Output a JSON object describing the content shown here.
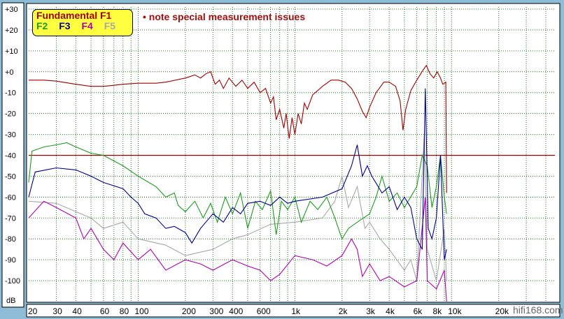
{
  "chart_data": {
    "type": "line",
    "x_scale": "log",
    "xlim": [
      20,
      45700
    ],
    "ylim": [
      -110,
      31
    ],
    "ylabel": "dB",
    "grid": true,
    "legend_placement": "top-left",
    "y_ticks": [
      {
        "v": 30,
        "label": "+30"
      },
      {
        "v": 20,
        "label": "+20"
      },
      {
        "v": 10,
        "label": "+10"
      },
      {
        "v": 0,
        "label": "+0"
      },
      {
        "v": -10,
        "label": "-10"
      },
      {
        "v": -20,
        "label": "-20"
      },
      {
        "v": -30,
        "label": "-30"
      },
      {
        "v": -40,
        "label": "-40"
      },
      {
        "v": -50,
        "label": "-50"
      },
      {
        "v": -60,
        "label": "-60"
      },
      {
        "v": -70,
        "label": "-70"
      },
      {
        "v": -80,
        "label": "-80"
      },
      {
        "v": -90,
        "label": "-90"
      },
      {
        "v": -100,
        "label": "-100"
      }
    ],
    "x_ticks": [
      {
        "v": 20,
        "label": "20"
      },
      {
        "v": 30,
        "label": "30"
      },
      {
        "v": 40,
        "label": "40"
      },
      {
        "v": 60,
        "label": "60"
      },
      {
        "v": 80,
        "label": "80"
      },
      {
        "v": 100,
        "label": "100"
      },
      {
        "v": 200,
        "label": "200"
      },
      {
        "v": 300,
        "label": "300"
      },
      {
        "v": 400,
        "label": "400"
      },
      {
        "v": 600,
        "label": "600"
      },
      {
        "v": 1000,
        "label": "1k"
      },
      {
        "v": 2000,
        "label": "2k"
      },
      {
        "v": 3000,
        "label": "3k"
      },
      {
        "v": 4000,
        "label": "4k"
      },
      {
        "v": 6000,
        "label": "6k"
      },
      {
        "v": 8000,
        "label": "8k"
      },
      {
        "v": 10000,
        "label": "10k"
      },
      {
        "v": 20000,
        "label": "20k"
      }
    ],
    "x_gridlines": [
      30,
      40,
      50,
      60,
      70,
      80,
      90,
      100,
      200,
      300,
      400,
      500,
      600,
      700,
      800,
      900,
      1000,
      2000,
      3000,
      4000,
      5000,
      6000,
      7000,
      8000,
      9000,
      10000,
      20000,
      30000,
      40000
    ],
    "reference_line": {
      "y": -40,
      "color": "#a00000"
    },
    "series": [
      {
        "name": "Fundamental F1",
        "color": "#a00000",
        "points": [
          [
            20,
            -4
          ],
          [
            25,
            -4
          ],
          [
            30,
            -4.5
          ],
          [
            40,
            -6
          ],
          [
            50,
            -7
          ],
          [
            60,
            -7
          ],
          [
            70,
            -6.5
          ],
          [
            80,
            -6
          ],
          [
            100,
            -5.5
          ],
          [
            130,
            -5.5
          ],
          [
            150,
            -5
          ],
          [
            200,
            -3
          ],
          [
            230,
            -1.5
          ],
          [
            250,
            -3
          ],
          [
            270,
            -1
          ],
          [
            290,
            0
          ],
          [
            310,
            -6
          ],
          [
            330,
            -4
          ],
          [
            350,
            -8
          ],
          [
            380,
            -3
          ],
          [
            420,
            -7
          ],
          [
            460,
            -4
          ],
          [
            500,
            -8
          ],
          [
            550,
            -5
          ],
          [
            600,
            -10
          ],
          [
            650,
            -8
          ],
          [
            700,
            -15
          ],
          [
            730,
            -12
          ],
          [
            760,
            -23
          ],
          [
            800,
            -18
          ],
          [
            850,
            -27
          ],
          [
            880,
            -20
          ],
          [
            920,
            -32
          ],
          [
            960,
            -22
          ],
          [
            1000,
            -30
          ],
          [
            1050,
            -20
          ],
          [
            1100,
            -25
          ],
          [
            1150,
            -15
          ],
          [
            1200,
            -18
          ],
          [
            1300,
            -11
          ],
          [
            1400,
            -9
          ],
          [
            1500,
            -7
          ],
          [
            1700,
            -4
          ],
          [
            1900,
            -4
          ],
          [
            2100,
            -5
          ],
          [
            2300,
            -8
          ],
          [
            2500,
            -13
          ],
          [
            2700,
            -19
          ],
          [
            2850,
            -22
          ],
          [
            3000,
            -17
          ],
          [
            3300,
            -10
          ],
          [
            3700,
            -5
          ],
          [
            4000,
            -5
          ],
          [
            4400,
            -7
          ],
          [
            4700,
            -14
          ],
          [
            4900,
            -28
          ],
          [
            5100,
            -18
          ],
          [
            5500,
            -9
          ],
          [
            6000,
            -4
          ],
          [
            6600,
            1
          ],
          [
            6900,
            3
          ],
          [
            7300,
            -1
          ],
          [
            7700,
            -3
          ],
          [
            8100,
            0
          ],
          [
            8500,
            -3
          ],
          [
            8800,
            -6
          ],
          [
            9200,
            -5
          ],
          [
            9300,
            -58
          ]
        ]
      },
      {
        "name": "F2",
        "color": "#1e9a1e",
        "points": [
          [
            20,
            -53
          ],
          [
            21,
            -38
          ],
          [
            25,
            -36
          ],
          [
            30,
            -35
          ],
          [
            35,
            -34
          ],
          [
            40,
            -36
          ],
          [
            50,
            -39
          ],
          [
            60,
            -40
          ],
          [
            80,
            -45
          ],
          [
            100,
            -50
          ],
          [
            130,
            -55
          ],
          [
            150,
            -60
          ],
          [
            170,
            -58
          ],
          [
            180,
            -64
          ],
          [
            200,
            -67
          ],
          [
            230,
            -62
          ],
          [
            260,
            -70
          ],
          [
            290,
            -63
          ],
          [
            320,
            -72
          ],
          [
            360,
            -60
          ],
          [
            400,
            -68
          ],
          [
            450,
            -58
          ],
          [
            500,
            -75
          ],
          [
            560,
            -62
          ],
          [
            620,
            -66
          ],
          [
            700,
            -57
          ],
          [
            760,
            -78
          ],
          [
            820,
            -62
          ],
          [
            900,
            -66
          ],
          [
            1000,
            -60
          ],
          [
            1100,
            -72
          ],
          [
            1250,
            -62
          ],
          [
            1400,
            -66
          ],
          [
            1600,
            -60
          ],
          [
            1800,
            -70
          ],
          [
            2000,
            -80
          ],
          [
            2200,
            -75
          ],
          [
            2500,
            -72
          ],
          [
            3000,
            -68
          ],
          [
            3300,
            -60
          ],
          [
            3600,
            -50
          ],
          [
            4000,
            -62
          ],
          [
            4500,
            -58
          ],
          [
            5000,
            -65
          ],
          [
            6000,
            -55
          ],
          [
            6500,
            -40
          ],
          [
            7000,
            -45
          ],
          [
            7500,
            -65
          ],
          [
            8000,
            -55
          ],
          [
            8500,
            -40
          ],
          [
            9000,
            -60
          ],
          [
            9300,
            -68
          ]
        ]
      },
      {
        "name": "F3",
        "color": "#000090",
        "points": [
          [
            20,
            -60
          ],
          [
            22,
            -48
          ],
          [
            30,
            -46
          ],
          [
            40,
            -47
          ],
          [
            50,
            -50
          ],
          [
            60,
            -53
          ],
          [
            80,
            -56
          ],
          [
            90,
            -60
          ],
          [
            100,
            -63
          ],
          [
            110,
            -68
          ],
          [
            130,
            -70
          ],
          [
            150,
            -75
          ],
          [
            170,
            -74
          ],
          [
            200,
            -77
          ],
          [
            220,
            -82
          ],
          [
            250,
            -75
          ],
          [
            270,
            -72
          ],
          [
            300,
            -68
          ],
          [
            350,
            -72
          ],
          [
            400,
            -65
          ],
          [
            450,
            -68
          ],
          [
            500,
            -63
          ],
          [
            600,
            -62
          ],
          [
            700,
            -64
          ],
          [
            800,
            -60
          ],
          [
            900,
            -63
          ],
          [
            1000,
            -62
          ],
          [
            1500,
            -60
          ],
          [
            2000,
            -56
          ],
          [
            2300,
            -45
          ],
          [
            2500,
            -35
          ],
          [
            2700,
            -50
          ],
          [
            2900,
            -45
          ],
          [
            3100,
            -50
          ],
          [
            3600,
            -58
          ],
          [
            4000,
            -55
          ],
          [
            4500,
            -66
          ],
          [
            5000,
            -60
          ],
          [
            5500,
            -65
          ],
          [
            6000,
            -80
          ],
          [
            6500,
            -85
          ],
          [
            6800,
            -8
          ],
          [
            7100,
            -75
          ],
          [
            7500,
            -80
          ],
          [
            8000,
            -70
          ],
          [
            8500,
            -40
          ],
          [
            9000,
            -90
          ],
          [
            9300,
            -85
          ]
        ]
      },
      {
        "name": "F4",
        "color": "#b000b0",
        "points": [
          [
            20,
            -70
          ],
          [
            25,
            -62
          ],
          [
            30,
            -65
          ],
          [
            40,
            -70
          ],
          [
            45,
            -80
          ],
          [
            50,
            -75
          ],
          [
            60,
            -85
          ],
          [
            70,
            -90
          ],
          [
            80,
            -82
          ],
          [
            100,
            -90
          ],
          [
            120,
            -85
          ],
          [
            150,
            -95
          ],
          [
            200,
            -90
          ],
          [
            250,
            -92
          ],
          [
            300,
            -95
          ],
          [
            400,
            -90
          ],
          [
            500,
            -93
          ],
          [
            600,
            -95
          ],
          [
            700,
            -100
          ],
          [
            800,
            -97
          ],
          [
            1000,
            -88
          ],
          [
            1300,
            -90
          ],
          [
            1600,
            -93
          ],
          [
            2000,
            -88
          ],
          [
            2300,
            -80
          ],
          [
            2500,
            -85
          ],
          [
            2700,
            -98
          ],
          [
            3000,
            -92
          ],
          [
            3500,
            -100
          ],
          [
            4000,
            -98
          ],
          [
            5000,
            -103
          ],
          [
            6000,
            -100
          ],
          [
            6800,
            -60
          ],
          [
            7000,
            -100
          ],
          [
            8000,
            -104
          ],
          [
            9000,
            -95
          ],
          [
            9300,
            -110
          ]
        ]
      },
      {
        "name": "F5",
        "color": "#a8a8a8",
        "points": [
          [
            20,
            -62
          ],
          [
            30,
            -63
          ],
          [
            40,
            -67
          ],
          [
            50,
            -70
          ],
          [
            60,
            -75
          ],
          [
            80,
            -72
          ],
          [
            100,
            -80
          ],
          [
            150,
            -83
          ],
          [
            200,
            -88
          ],
          [
            300,
            -85
          ],
          [
            400,
            -80
          ],
          [
            500,
            -78
          ],
          [
            700,
            -73
          ],
          [
            1000,
            -72
          ],
          [
            1500,
            -70
          ],
          [
            1800,
            -62
          ],
          [
            2000,
            -50
          ],
          [
            2200,
            -65
          ],
          [
            2500,
            -55
          ],
          [
            2800,
            -75
          ],
          [
            3000,
            -72
          ],
          [
            3500,
            -80
          ],
          [
            4000,
            -85
          ],
          [
            5000,
            -95
          ],
          [
            5500,
            -90
          ],
          [
            6000,
            -100
          ],
          [
            6700,
            -30
          ],
          [
            7000,
            -85
          ],
          [
            8000,
            -100
          ],
          [
            9000,
            -75
          ],
          [
            9300,
            -100
          ]
        ]
      }
    ]
  },
  "legend": {
    "f1": "Fundamental F1",
    "f2": "F2",
    "f3": "F3",
    "f4": "F4",
    "f5": "F5"
  },
  "note": "• note special measurement issues",
  "watermark": "hifi168.com"
}
